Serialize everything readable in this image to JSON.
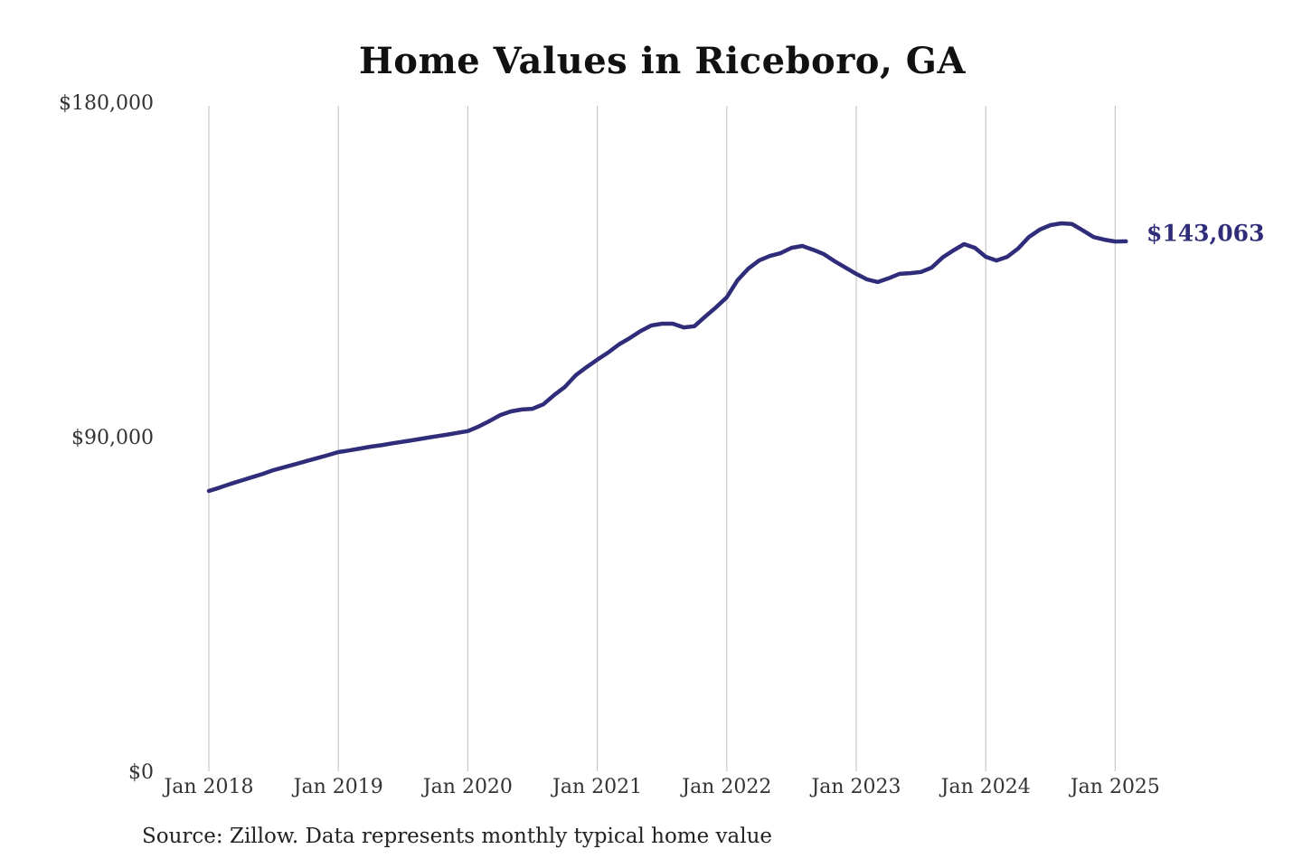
{
  "chart_data": {
    "type": "line",
    "title": "Home Values in Riceboro, GA",
    "source_note": "Source: Zillow. Data represents monthly typical home value",
    "end_label": "$143,063",
    "end_value": 143063,
    "xlabel": "",
    "ylabel": "",
    "ylim": [
      0,
      180000
    ],
    "grid": "vertical-only",
    "legend": "none",
    "line_color": "#2f2c79",
    "end_label_color": "#2f2c79",
    "grid_color": "#c9c9c9",
    "axis_text_color": "#333333",
    "title_color": "#111111",
    "x_tick_labels": [
      "Jan 2018",
      "Jan 2019",
      "Jan 2020",
      "Jan 2021",
      "Jan 2022",
      "Jan 2023",
      "Jan 2024",
      "Jan 2025"
    ],
    "y_ticks": [
      {
        "label": "$180,000",
        "value": 180000
      },
      {
        "label": "$90,000",
        "value": 90000
      },
      {
        "label": "$0",
        "value": 0
      }
    ],
    "x": [
      "2018-01",
      "2018-02",
      "2018-03",
      "2018-04",
      "2018-05",
      "2018-06",
      "2018-07",
      "2018-08",
      "2018-09",
      "2018-10",
      "2018-11",
      "2018-12",
      "2019-01",
      "2019-02",
      "2019-03",
      "2019-04",
      "2019-05",
      "2019-06",
      "2019-07",
      "2019-08",
      "2019-09",
      "2019-10",
      "2019-11",
      "2019-12",
      "2020-01",
      "2020-02",
      "2020-03",
      "2020-04",
      "2020-05",
      "2020-06",
      "2020-07",
      "2020-08",
      "2020-09",
      "2020-10",
      "2020-11",
      "2020-12",
      "2021-01",
      "2021-02",
      "2021-03",
      "2021-04",
      "2021-05",
      "2021-06",
      "2021-07",
      "2021-08",
      "2021-09",
      "2021-10",
      "2021-11",
      "2021-12",
      "2022-01",
      "2022-02",
      "2022-03",
      "2022-04",
      "2022-05",
      "2022-06",
      "2022-07",
      "2022-08",
      "2022-09",
      "2022-10",
      "2022-11",
      "2022-12",
      "2023-01",
      "2023-02",
      "2023-03",
      "2023-04",
      "2023-05",
      "2023-06",
      "2023-07",
      "2023-08",
      "2023-09",
      "2023-10",
      "2023-11",
      "2023-12",
      "2024-01",
      "2024-02",
      "2024-03",
      "2024-04",
      "2024-05",
      "2024-06",
      "2024-07",
      "2024-08",
      "2024-09",
      "2024-10",
      "2024-11",
      "2024-12",
      "2025-01",
      "2025-02"
    ],
    "values": [
      75900,
      76800,
      77800,
      78700,
      79600,
      80500,
      81500,
      82300,
      83100,
      83900,
      84700,
      85500,
      86350,
      86800,
      87300,
      87800,
      88200,
      88700,
      89150,
      89600,
      90100,
      90550,
      91000,
      91500,
      92000,
      93200,
      94700,
      96300,
      97300,
      97800,
      98000,
      99200,
      101700,
      103900,
      107000,
      109200,
      111200,
      113100,
      115300,
      117000,
      118900,
      120400,
      120900,
      120900,
      119900,
      120200,
      122800,
      125300,
      128000,
      132600,
      135700,
      137900,
      139100,
      139900,
      141300,
      141800,
      140800,
      139600,
      137700,
      136000,
      134300,
      132800,
      132100,
      133100,
      134300,
      134500,
      134800,
      136000,
      138700,
      140600,
      142300,
      141300,
      138900,
      137900,
      138900,
      141100,
      144200,
      146200,
      147400,
      147900,
      147700,
      146000,
      144200,
      143500,
      143000,
      143063
    ]
  }
}
